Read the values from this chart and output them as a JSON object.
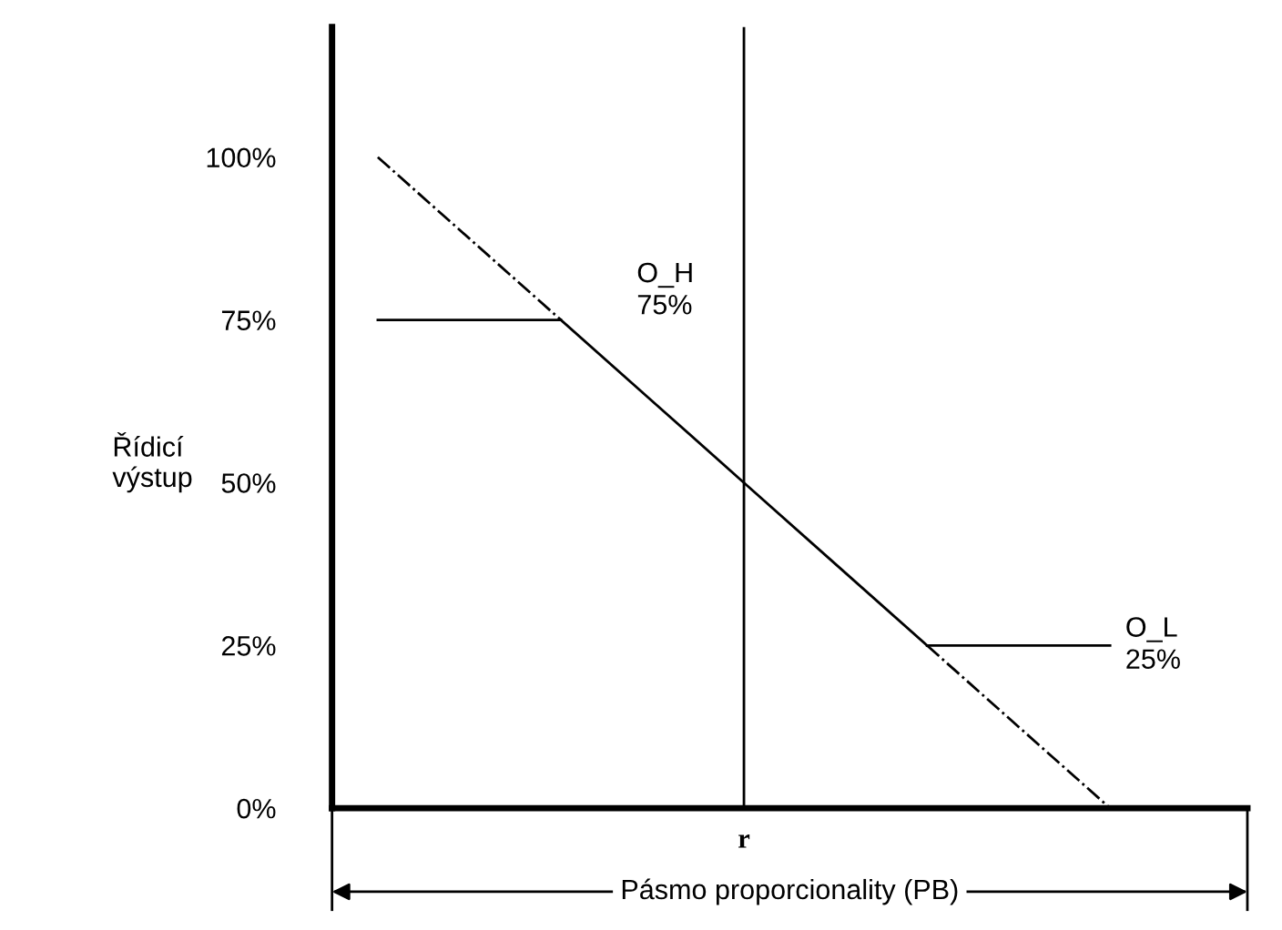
{
  "chart_data": {
    "type": "line",
    "ylabel": "Řídicí\nvýstup",
    "categories": [
      null,
      null,
      null,
      null,
      "r",
      null,
      null,
      null,
      null,
      null
    ],
    "ylim": [
      0,
      120
    ],
    "yticks": [
      {
        "value": 0,
        "label": "0%"
      },
      {
        "value": 25,
        "label": "25%"
      },
      {
        "value": 50,
        "label": "50%"
      },
      {
        "value": 75,
        "label": "75%"
      },
      {
        "value": 100,
        "label": "100%"
      }
    ],
    "marker": "none",
    "series": [
      {
        "color": "#000000",
        "line_style": "dashdot",
        "values": [
          100,
          87.5,
          75,
          null,
          null,
          null,
          null,
          null,
          null,
          null
        ]
      },
      {
        "color": "#000000",
        "line_style": "solid",
        "values": [
          null,
          null,
          75,
          62.5,
          50,
          37.5,
          25,
          null,
          null,
          null
        ]
      },
      {
        "color": "#000000",
        "line_style": "dashdot",
        "values": [
          null,
          null,
          null,
          null,
          null,
          null,
          25,
          12.5,
          0,
          null
        ]
      },
      {
        "name": "O_H\n75%",
        "color": "#000000",
        "line_style": "solid",
        "values": [
          75,
          75,
          75,
          null,
          null,
          null,
          null,
          null,
          null,
          null
        ]
      },
      {
        "name": "O_L\n25%",
        "color": "#000000",
        "line_style": "solid",
        "values": [
          null,
          null,
          null,
          null,
          null,
          null,
          25,
          25,
          25,
          null
        ]
      }
    ],
    "ref_lines": [
      {
        "axis": "x",
        "value": "r",
        "color": "#000000"
      }
    ],
    "annotations": [
      "Pásmo proporcionality (PB)"
    ]
  }
}
